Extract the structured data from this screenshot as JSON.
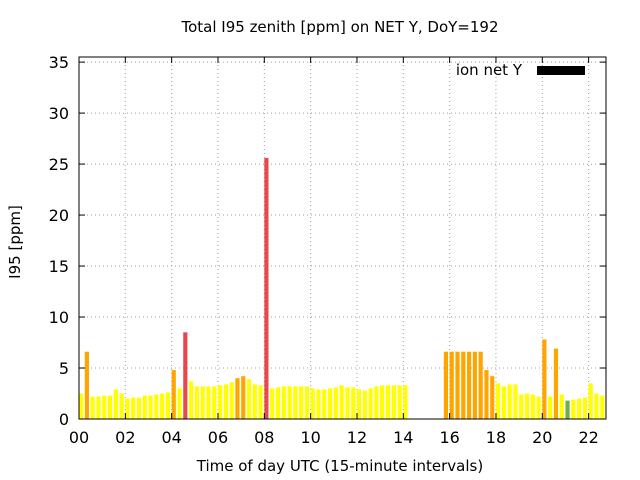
{
  "chart_data": {
    "type": "bar",
    "title": "Total I95 zenith [ppm] on NET Y, DoY=192",
    "xlabel": "Time of day UTC (15-minute intervals)",
    "ylabel": "I95 [ppm]",
    "xlim": [
      0,
      22.75
    ],
    "ylim": [
      0,
      35.5
    ],
    "x_ticks": [
      {
        "value": 0,
        "label": "00"
      },
      {
        "value": 2,
        "label": "02"
      },
      {
        "value": 4,
        "label": "04"
      },
      {
        "value": 6,
        "label": "06"
      },
      {
        "value": 8,
        "label": "08"
      },
      {
        "value": 10,
        "label": "10"
      },
      {
        "value": 12,
        "label": "12"
      },
      {
        "value": 14,
        "label": "14"
      },
      {
        "value": 16,
        "label": "16"
      },
      {
        "value": 18,
        "label": "18"
      },
      {
        "value": 20,
        "label": "20"
      },
      {
        "value": 22,
        "label": "22"
      }
    ],
    "y_ticks": [
      0,
      5,
      10,
      15,
      20,
      25,
      30,
      35
    ],
    "grid": true,
    "legend_position": "top-right",
    "series": [
      {
        "name": "ion net Y",
        "legend_color": "#000000",
        "bar_width_hours": 0.18,
        "points": [
          {
            "x": 0.0,
            "y": 2.5,
            "color": "#ffff00"
          },
          {
            "x": 0.25,
            "y": 6.6,
            "color": "#ffa500"
          },
          {
            "x": 0.5,
            "y": 2.2,
            "color": "#ffff00"
          },
          {
            "x": 0.75,
            "y": 2.2,
            "color": "#ffff00"
          },
          {
            "x": 1.0,
            "y": 2.3,
            "color": "#ffff00"
          },
          {
            "x": 1.25,
            "y": 2.3,
            "color": "#ffff00"
          },
          {
            "x": 1.5,
            "y": 2.9,
            "color": "#ffff00"
          },
          {
            "x": 1.75,
            "y": 2.5,
            "color": "#ffff00"
          },
          {
            "x": 2.0,
            "y": 2.0,
            "color": "#ffff00"
          },
          {
            "x": 2.25,
            "y": 2.1,
            "color": "#ffff00"
          },
          {
            "x": 2.5,
            "y": 2.1,
            "color": "#ffff00"
          },
          {
            "x": 2.75,
            "y": 2.3,
            "color": "#ffff00"
          },
          {
            "x": 3.0,
            "y": 2.3,
            "color": "#ffff00"
          },
          {
            "x": 3.25,
            "y": 2.4,
            "color": "#ffff00"
          },
          {
            "x": 3.5,
            "y": 2.5,
            "color": "#ffff00"
          },
          {
            "x": 3.75,
            "y": 2.6,
            "color": "#ffff00"
          },
          {
            "x": 4.0,
            "y": 4.8,
            "color": "#ffa500"
          },
          {
            "x": 4.25,
            "y": 3.0,
            "color": "#ffff00"
          },
          {
            "x": 4.5,
            "y": 8.5,
            "color": "#e8474c"
          },
          {
            "x": 4.75,
            "y": 3.7,
            "color": "#ffff00"
          },
          {
            "x": 5.0,
            "y": 3.2,
            "color": "#ffff00"
          },
          {
            "x": 5.25,
            "y": 3.2,
            "color": "#ffff00"
          },
          {
            "x": 5.5,
            "y": 3.2,
            "color": "#ffff00"
          },
          {
            "x": 5.75,
            "y": 3.2,
            "color": "#ffff00"
          },
          {
            "x": 6.0,
            "y": 3.3,
            "color": "#ffff00"
          },
          {
            "x": 6.25,
            "y": 3.4,
            "color": "#ffff00"
          },
          {
            "x": 6.5,
            "y": 3.6,
            "color": "#ffff00"
          },
          {
            "x": 6.75,
            "y": 4.0,
            "color": "#ffa500"
          },
          {
            "x": 7.0,
            "y": 4.2,
            "color": "#ffa500"
          },
          {
            "x": 7.25,
            "y": 3.9,
            "color": "#ffff00"
          },
          {
            "x": 7.5,
            "y": 3.4,
            "color": "#ffff00"
          },
          {
            "x": 7.75,
            "y": 3.3,
            "color": "#ffff00"
          },
          {
            "x": 8.0,
            "y": 25.6,
            "color": "#e8474c"
          },
          {
            "x": 8.25,
            "y": 3.0,
            "color": "#ffff00"
          },
          {
            "x": 8.5,
            "y": 3.1,
            "color": "#ffff00"
          },
          {
            "x": 8.75,
            "y": 3.2,
            "color": "#ffff00"
          },
          {
            "x": 9.0,
            "y": 3.2,
            "color": "#ffff00"
          },
          {
            "x": 9.25,
            "y": 3.2,
            "color": "#ffff00"
          },
          {
            "x": 9.5,
            "y": 3.2,
            "color": "#ffff00"
          },
          {
            "x": 9.75,
            "y": 3.2,
            "color": "#ffff00"
          },
          {
            "x": 10.0,
            "y": 3.0,
            "color": "#ffff00"
          },
          {
            "x": 10.25,
            "y": 2.9,
            "color": "#ffff00"
          },
          {
            "x": 10.5,
            "y": 2.9,
            "color": "#ffff00"
          },
          {
            "x": 10.75,
            "y": 3.0,
            "color": "#ffff00"
          },
          {
            "x": 11.0,
            "y": 3.1,
            "color": "#ffff00"
          },
          {
            "x": 11.25,
            "y": 3.3,
            "color": "#ffff00"
          },
          {
            "x": 11.5,
            "y": 3.1,
            "color": "#ffff00"
          },
          {
            "x": 11.75,
            "y": 3.1,
            "color": "#ffff00"
          },
          {
            "x": 12.0,
            "y": 2.9,
            "color": "#ffff00"
          },
          {
            "x": 12.25,
            "y": 2.8,
            "color": "#ffff00"
          },
          {
            "x": 12.5,
            "y": 3.0,
            "color": "#ffff00"
          },
          {
            "x": 12.75,
            "y": 3.2,
            "color": "#ffff00"
          },
          {
            "x": 13.0,
            "y": 3.3,
            "color": "#ffff00"
          },
          {
            "x": 13.25,
            "y": 3.3,
            "color": "#ffff00"
          },
          {
            "x": 13.5,
            "y": 3.3,
            "color": "#ffff00"
          },
          {
            "x": 13.75,
            "y": 3.3,
            "color": "#ffff00"
          },
          {
            "x": 14.0,
            "y": 3.3,
            "color": "#ffff00"
          },
          {
            "x": 15.75,
            "y": 6.6,
            "color": "#ffa500"
          },
          {
            "x": 16.0,
            "y": 6.6,
            "color": "#ffa500"
          },
          {
            "x": 16.25,
            "y": 6.6,
            "color": "#ffa500"
          },
          {
            "x": 16.5,
            "y": 6.6,
            "color": "#ffa500"
          },
          {
            "x": 16.75,
            "y": 6.6,
            "color": "#ffa500"
          },
          {
            "x": 17.0,
            "y": 6.6,
            "color": "#ffa500"
          },
          {
            "x": 17.25,
            "y": 6.6,
            "color": "#ffa500"
          },
          {
            "x": 17.5,
            "y": 4.8,
            "color": "#ffa500"
          },
          {
            "x": 17.75,
            "y": 4.2,
            "color": "#ffa500"
          },
          {
            "x": 18.0,
            "y": 3.5,
            "color": "#ffff00"
          },
          {
            "x": 18.25,
            "y": 3.2,
            "color": "#ffff00"
          },
          {
            "x": 18.5,
            "y": 3.4,
            "color": "#ffff00"
          },
          {
            "x": 18.75,
            "y": 3.4,
            "color": "#ffff00"
          },
          {
            "x": 19.0,
            "y": 2.4,
            "color": "#ffff00"
          },
          {
            "x": 19.25,
            "y": 2.5,
            "color": "#ffff00"
          },
          {
            "x": 19.5,
            "y": 2.4,
            "color": "#ffff00"
          },
          {
            "x": 19.75,
            "y": 2.2,
            "color": "#ffff00"
          },
          {
            "x": 20.0,
            "y": 7.8,
            "color": "#ffa500"
          },
          {
            "x": 20.25,
            "y": 2.2,
            "color": "#ffff00"
          },
          {
            "x": 20.5,
            "y": 6.9,
            "color": "#ffa500"
          },
          {
            "x": 20.75,
            "y": 2.4,
            "color": "#ffff00"
          },
          {
            "x": 21.0,
            "y": 1.8,
            "color": "#6ab04c"
          },
          {
            "x": 21.25,
            "y": 1.9,
            "color": "#ffff00"
          },
          {
            "x": 21.5,
            "y": 2.0,
            "color": "#ffff00"
          },
          {
            "x": 21.75,
            "y": 2.1,
            "color": "#ffff00"
          },
          {
            "x": 22.0,
            "y": 3.5,
            "color": "#ffff00"
          },
          {
            "x": 22.25,
            "y": 2.5,
            "color": "#ffff00"
          },
          {
            "x": 22.5,
            "y": 2.3,
            "color": "#ffff00"
          }
        ]
      }
    ]
  }
}
